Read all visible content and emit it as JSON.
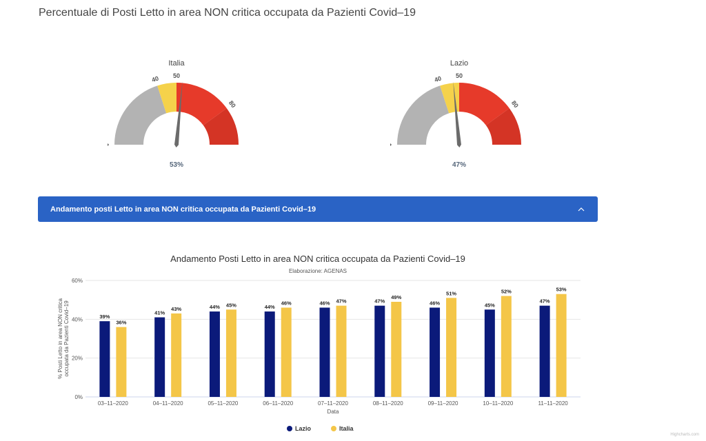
{
  "page": {
    "title": "Percentuale di Posti Letto in area NON critica occupata da Pazienti Covid–19"
  },
  "gauges": [
    {
      "label": "Italia",
      "value": 53,
      "value_text": "53%",
      "min": 0,
      "max": 100,
      "ticks": [
        {
          "value": 40,
          "text": "40"
        },
        {
          "value": 50,
          "text": "50"
        },
        {
          "value": 80,
          "text": "80"
        }
      ],
      "bands": [
        {
          "from": 0,
          "to": 40,
          "color": "#b3b3b3"
        },
        {
          "from": 40,
          "to": 50,
          "color": "#f5d24b"
        },
        {
          "from": 50,
          "to": 80,
          "color": "#e63a2a"
        },
        {
          "from": 80,
          "to": 100,
          "color": "#d43425"
        }
      ]
    },
    {
      "label": "Lazio",
      "value": 47,
      "value_text": "47%",
      "min": 0,
      "max": 100,
      "ticks": [
        {
          "value": 40,
          "text": "40"
        },
        {
          "value": 50,
          "text": "50"
        },
        {
          "value": 80,
          "text": "80"
        }
      ],
      "bands": [
        {
          "from": 0,
          "to": 40,
          "color": "#b3b3b3"
        },
        {
          "from": 40,
          "to": 50,
          "color": "#f5d24b"
        },
        {
          "from": 50,
          "to": 80,
          "color": "#e63a2a"
        },
        {
          "from": 80,
          "to": 100,
          "color": "#d43425"
        }
      ]
    }
  ],
  "accordion": {
    "title": "Andamento posti Letto in area NON critica occupata da Pazienti Covid–19",
    "expanded": true
  },
  "chart_data": {
    "type": "bar",
    "title": "Andamento Posti Letto in area NON critica occupata da Pazienti Covid–19",
    "subtitle": "Elaborazione: AGENAS",
    "xlabel": "Data",
    "ylabel": "% Posti Letto in area NON critica occupata da Pazienti Covid–19",
    "ylim": [
      0,
      60
    ],
    "yticks": [
      "0%",
      "20%",
      "40%",
      "60%"
    ],
    "ytick_values": [
      0,
      20,
      40,
      60
    ],
    "categories": [
      "03–11–2020",
      "04–11–2020",
      "05–11–2020",
      "06–11–2020",
      "07–11–2020",
      "08–11–2020",
      "09–11–2020",
      "10–11–2020",
      "11–11–2020"
    ],
    "series": [
      {
        "name": "Lazio",
        "color": "#0b1a7a",
        "values": [
          39,
          41,
          44,
          44,
          46,
          47,
          46,
          45,
          47
        ],
        "labels": [
          "39%",
          "41%",
          "44%",
          "44%",
          "46%",
          "47%",
          "46%",
          "45%",
          "47%"
        ]
      },
      {
        "name": "Italia",
        "color": "#f4c648",
        "values": [
          36,
          43,
          45,
          46,
          47,
          49,
          51,
          52,
          53
        ],
        "labels": [
          "36%",
          "43%",
          "45%",
          "46%",
          "47%",
          "49%",
          "51%",
          "52%",
          "53%"
        ]
      }
    ],
    "grid": true,
    "legend": "bottom-center"
  },
  "credit": "Highcharts.com"
}
